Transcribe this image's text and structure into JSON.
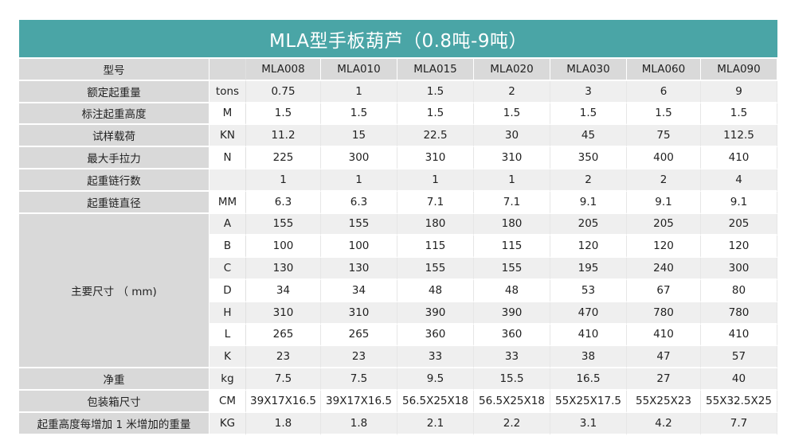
{
  "title": "MLA型手板葫芦（0.8吨-9吨）",
  "header": {
    "label": "型号",
    "unit": "",
    "models": [
      "MLA008",
      "MLA010",
      "MLA015",
      "MLA020",
      "MLA030",
      "MLA060",
      "MLA090"
    ]
  },
  "rows": [
    {
      "label": "额定起重量",
      "unit": "tons",
      "values": [
        "0.75",
        "1",
        "1.5",
        "2",
        "3",
        "6",
        "9"
      ]
    },
    {
      "label": "标注起重高度",
      "unit": "M",
      "values": [
        "1.5",
        "1.5",
        "1.5",
        "1.5",
        "1.5",
        "1.5",
        "1.5"
      ]
    },
    {
      "label": "试样载荷",
      "unit": "KN",
      "values": [
        "11.2",
        "15",
        "22.5",
        "30",
        "45",
        "75",
        "112.5"
      ]
    },
    {
      "label": "最大手拉力",
      "unit": "N",
      "values": [
        "225",
        "300",
        "310",
        "310",
        "350",
        "400",
        "410"
      ]
    },
    {
      "label": "起重链行数",
      "unit": "",
      "values": [
        "1",
        "1",
        "1",
        "1",
        "2",
        "2",
        "4"
      ]
    },
    {
      "label": "起重链直径",
      "unit": "MM",
      "values": [
        "6.3",
        "6.3",
        "7.1",
        "7.1",
        "9.1",
        "9.1",
        "9.1"
      ]
    }
  ],
  "dimensions": {
    "label": "主要尺寸 （ mm)",
    "rows": [
      {
        "unit": "A",
        "values": [
          "155",
          "155",
          "180",
          "180",
          "205",
          "205",
          "205"
        ]
      },
      {
        "unit": "B",
        "values": [
          "100",
          "100",
          "115",
          "115",
          "120",
          "120",
          "120"
        ]
      },
      {
        "unit": "C",
        "values": [
          "130",
          "130",
          "155",
          "155",
          "195",
          "240",
          "300"
        ]
      },
      {
        "unit": "D",
        "values": [
          "34",
          "34",
          "48",
          "48",
          "53",
          "67",
          "80"
        ]
      },
      {
        "unit": "H",
        "values": [
          "310",
          "310",
          "390",
          "390",
          "470",
          "780",
          "780"
        ]
      },
      {
        "unit": "L",
        "values": [
          "265",
          "265",
          "360",
          "360",
          "410",
          "410",
          "410"
        ]
      },
      {
        "unit": "K",
        "values": [
          "23",
          "23",
          "33",
          "33",
          "38",
          "47",
          "57"
        ]
      }
    ]
  },
  "tail_rows": [
    {
      "label": "净重",
      "unit": "kg",
      "values": [
        "7.5",
        "7.5",
        "9.5",
        "15.5",
        "16.5",
        "27",
        "40"
      ]
    },
    {
      "label": "包装箱尺寸",
      "unit": "CM",
      "values": [
        "39X17X16.5",
        "39X17X16.5",
        "56.5X25X18",
        "56.5X25X18",
        "55X25X17.5",
        "55X25X23",
        "55X32.5X25"
      ]
    },
    {
      "label": "起重高度每增加 1 米增加的重量",
      "unit": "KG",
      "values": [
        "1.8",
        "1.8",
        "2.1",
        "2.2",
        "3.1",
        "4.2",
        "7.7"
      ]
    }
  ],
  "colors": {
    "title_bg": "#4aa5a6",
    "label_bg": "#d9d9d9"
  }
}
